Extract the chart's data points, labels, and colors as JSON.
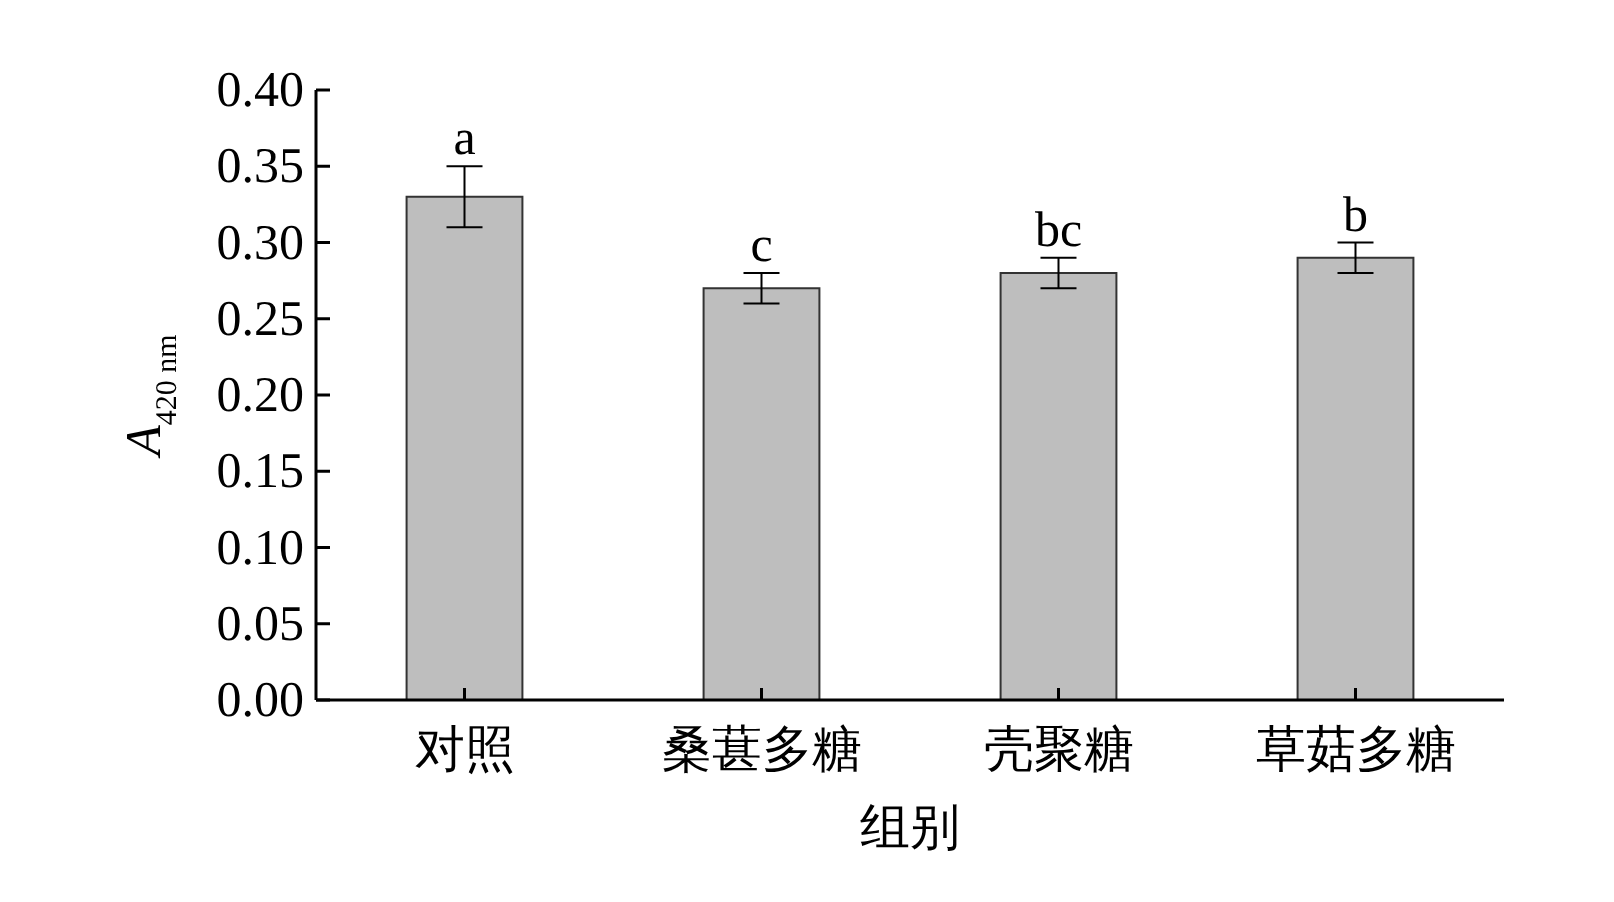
{
  "chart_data": {
    "type": "bar",
    "xlabel": "组别",
    "ylabel": "A$_{420 nm}$",
    "categories": [
      "对照",
      "桑葚多糖",
      "壳聚糖",
      "草菇多糖"
    ],
    "values": [
      0.33,
      0.27,
      0.28,
      0.29
    ],
    "errors": [
      0.02,
      0.01,
      0.01,
      0.01
    ],
    "color": "#bebebe",
    "ylim": [
      0,
      0.4
    ],
    "yticks": [
      {
        "value": 0,
        "label": "0.00"
      },
      {
        "value": 0.05,
        "label": "0.05"
      },
      {
        "value": 0.1,
        "label": "0.10"
      },
      {
        "value": 0.15,
        "label": "0.15"
      },
      {
        "value": 0.2,
        "label": "0.20"
      },
      {
        "value": 0.25,
        "label": "0.25"
      },
      {
        "value": 0.3,
        "label": "0.30"
      },
      {
        "value": 0.35,
        "label": "0.35"
      },
      {
        "value": 0.4,
        "label": "0.40"
      }
    ],
    "annotations": [
      {
        "text": "a",
        "x": "对照",
        "y": 0.35
      },
      {
        "text": "c",
        "x": "桑葚多糖",
        "y": 0.28
      },
      {
        "text": "bc",
        "x": "壳聚糖",
        "y": 0.29
      },
      {
        "text": "b",
        "x": "草菇多糖",
        "y": 0.3
      }
    ]
  }
}
